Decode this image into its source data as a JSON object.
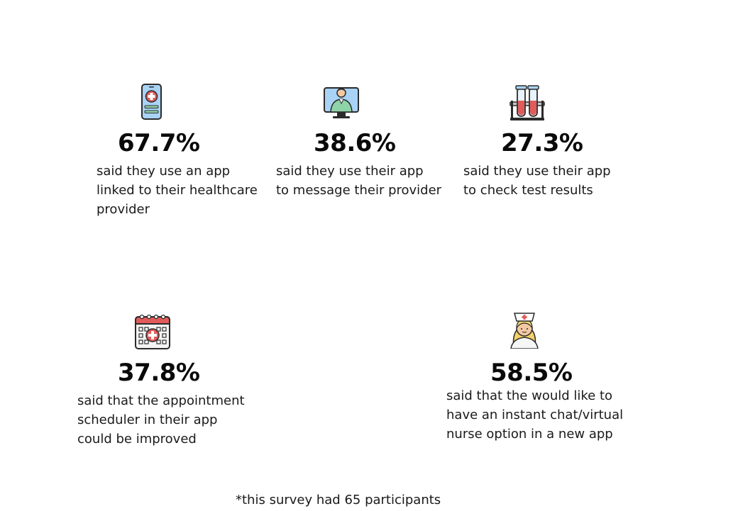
{
  "stats": [
    {
      "icon": "mobile-health-app-icon",
      "percent": "67.7%",
      "lines": [
        "said they use an app",
        "linked to their healthcare",
        "provider"
      ]
    },
    {
      "icon": "doctor-video-call-icon",
      "percent": "38.6%",
      "lines": [
        "said they use their app",
        "to message their provider"
      ]
    },
    {
      "icon": "test-tubes-icon",
      "percent": "27.3%",
      "lines": [
        "said they use their app",
        "to check test results"
      ]
    },
    {
      "icon": "medical-calendar-icon",
      "percent": "37.8%",
      "lines": [
        "said that the appointment",
        "scheduler in their app",
        "could be improved"
      ]
    },
    {
      "icon": "nurse-icon",
      "percent": "58.5%",
      "lines": [
        "said that the would like to",
        "have an instant chat/virtual",
        "nurse option in a new app"
      ]
    }
  ],
  "footnote": "*this survey had 65 participants",
  "colors": {
    "text": "#1a1a1a",
    "icon_outline": "#2b2b2b",
    "icon_red": "#e25b5b",
    "icon_blue": "#a9d3f5",
    "icon_green": "#8fd3a8",
    "icon_skin": "#f3c9a3"
  }
}
